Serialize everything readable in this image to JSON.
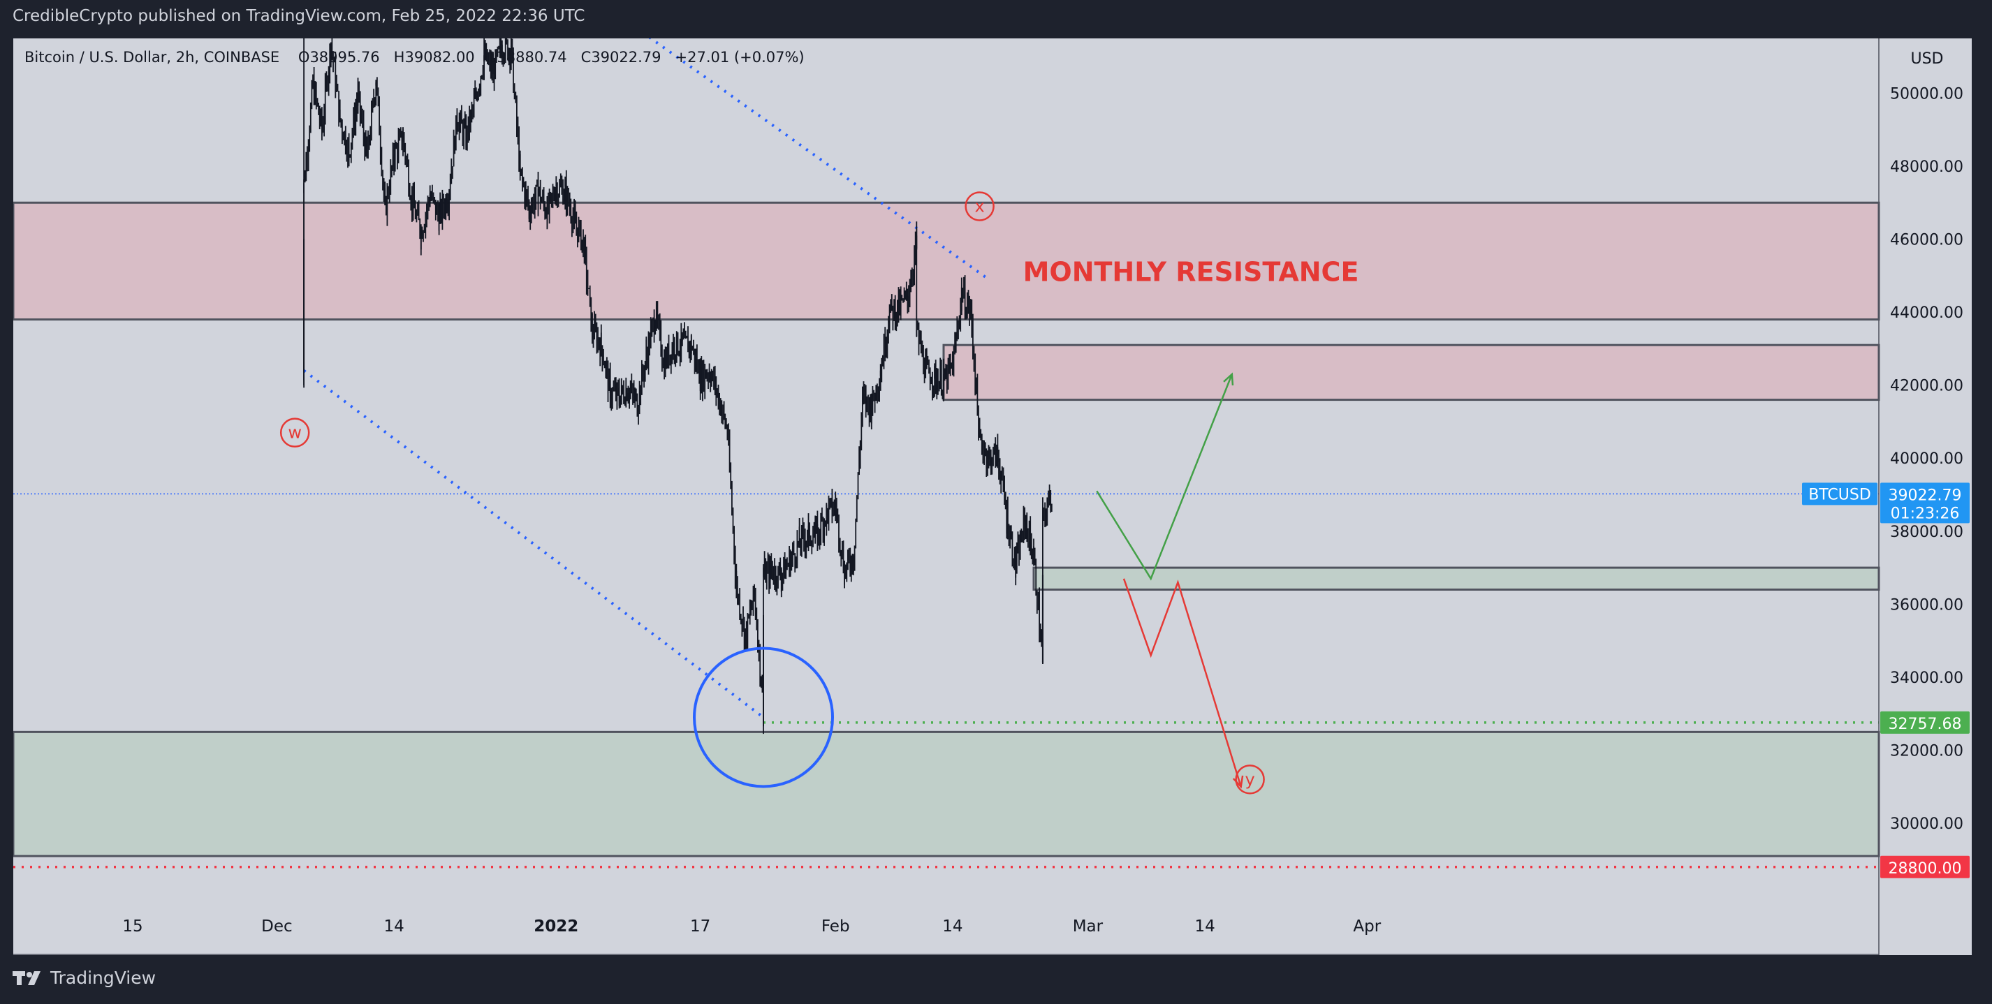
{
  "header": {
    "publish_line": "CredibleCrypto published on TradingView.com, Feb 25, 2022 22:36 UTC"
  },
  "legend": {
    "symbol": "Bitcoin / U.S. Dollar, 2h, COINBASE",
    "open_label": "O",
    "open": "38995.76",
    "high_label": "H",
    "high": "39082.00",
    "low_label": "L",
    "low": "38880.74",
    "close_label": "C",
    "close": "39022.79",
    "change": "+27.01 (+0.07%)"
  },
  "footer": {
    "brand": "TradingView",
    "logo_icon": "tradingview-logo-icon"
  },
  "colors": {
    "background": "#d1d4dc",
    "frame": "#1e222d",
    "candle": "#131722",
    "resistance_zone": "#d8bdc6",
    "support_zone": "#c0cfc9",
    "zone_border": "#50535e",
    "wave_label": "#e53935",
    "trendline": "#2962ff",
    "bullish_path": "#43a047",
    "bearish_path": "#e53935",
    "price_tag_blue": "#2196f3",
    "price_tag_green": "#4caf50",
    "price_tag_red": "#f23645"
  },
  "chart_data": {
    "type": "candlestick",
    "currency_label": "USD",
    "y_range": [
      27400,
      51500
    ],
    "y_ticks": [
      "50000.00",
      "48000.00",
      "46000.00",
      "44000.00",
      "42000.00",
      "40000.00",
      "38000.00",
      "36000.00",
      "34000.00",
      "32000.00",
      "30000.00"
    ],
    "x_ticks": [
      {
        "label": "15",
        "date": "2021-11-15"
      },
      {
        "label": "Dec",
        "date": "2021-12-01"
      },
      {
        "label": "14",
        "date": "2021-12-14"
      },
      {
        "label": "2022",
        "date": "2022-01-01",
        "bold": true
      },
      {
        "label": "17",
        "date": "2022-01-17"
      },
      {
        "label": "Feb",
        "date": "2022-02-01"
      },
      {
        "label": "14",
        "date": "2022-02-14"
      },
      {
        "label": "Mar",
        "date": "2022-03-01"
      },
      {
        "label": "14",
        "date": "2022-03-14"
      },
      {
        "label": "Apr",
        "date": "2022-04-01"
      }
    ],
    "price_path": [
      [
        "2021-12-04",
        52800
      ],
      [
        "2021-12-04",
        42500
      ],
      [
        "2021-12-04",
        47500
      ],
      [
        "2021-12-05",
        50200
      ],
      [
        "2021-12-06",
        49000
      ],
      [
        "2021-12-07",
        51400
      ],
      [
        "2021-12-08",
        49300
      ],
      [
        "2021-12-09",
        48400
      ],
      [
        "2021-12-10",
        49900
      ],
      [
        "2021-12-11",
        48200
      ],
      [
        "2021-12-12",
        50400
      ],
      [
        "2021-12-13",
        46800
      ],
      [
        "2021-12-14",
        48300
      ],
      [
        "2021-12-15",
        48800
      ],
      [
        "2021-12-16",
        47000
      ],
      [
        "2021-12-17",
        46200
      ],
      [
        "2021-12-18",
        47200
      ],
      [
        "2021-12-19",
        46600
      ],
      [
        "2021-12-20",
        47200
      ],
      [
        "2021-12-21",
        49300
      ],
      [
        "2021-12-22",
        48800
      ],
      [
        "2021-12-23",
        49800
      ],
      [
        "2021-12-24",
        51000
      ],
      [
        "2021-12-25",
        50600
      ],
      [
        "2021-12-26",
        51300
      ],
      [
        "2021-12-27",
        51200
      ],
      [
        "2021-12-28",
        47800
      ],
      [
        "2021-12-29",
        46800
      ],
      [
        "2021-12-30",
        47300
      ],
      [
        "2021-12-31",
        46700
      ],
      [
        "2022-01-01",
        47400
      ],
      [
        "2022-01-02",
        47300
      ],
      [
        "2022-01-03",
        46500
      ],
      [
        "2022-01-04",
        45900
      ],
      [
        "2022-01-05",
        43500
      ],
      [
        "2022-01-06",
        43100
      ],
      [
        "2022-01-07",
        41800
      ],
      [
        "2022-01-08",
        41700
      ],
      [
        "2022-01-09",
        41900
      ],
      [
        "2022-01-10",
        41500
      ],
      [
        "2022-01-11",
        42800
      ],
      [
        "2022-01-12",
        43900
      ],
      [
        "2022-01-13",
        42600
      ],
      [
        "2022-01-14",
        43100
      ],
      [
        "2022-01-15",
        43100
      ],
      [
        "2022-01-16",
        43100
      ],
      [
        "2022-01-17",
        42200
      ],
      [
        "2022-01-18",
        42400
      ],
      [
        "2022-01-19",
        41700
      ],
      [
        "2022-01-20",
        40700
      ],
      [
        "2022-01-21",
        36500
      ],
      [
        "2022-01-22",
        35100
      ],
      [
        "2022-01-23",
        36300
      ],
      [
        "2022-01-24",
        33100
      ],
      [
        "2022-01-24",
        36800
      ],
      [
        "2022-01-25",
        36900
      ],
      [
        "2022-01-26",
        36800
      ],
      [
        "2022-01-27",
        37200
      ],
      [
        "2022-01-28",
        37700
      ],
      [
        "2022-01-29",
        37900
      ],
      [
        "2022-01-30",
        37900
      ],
      [
        "2022-01-31",
        38500
      ],
      [
        "2022-02-01",
        38700
      ],
      [
        "2022-02-02",
        36900
      ],
      [
        "2022-02-03",
        37300
      ],
      [
        "2022-02-04",
        41600
      ],
      [
        "2022-02-05",
        41400
      ],
      [
        "2022-02-06",
        42400
      ],
      [
        "2022-02-07",
        44000
      ],
      [
        "2022-02-08",
        44100
      ],
      [
        "2022-02-09",
        44400
      ],
      [
        "2022-02-10",
        45900
      ],
      [
        "2022-02-10",
        43500
      ],
      [
        "2022-02-11",
        42400
      ],
      [
        "2022-02-12",
        42200
      ],
      [
        "2022-02-13",
        42100
      ],
      [
        "2022-02-14",
        42500
      ],
      [
        "2022-02-15",
        44500
      ],
      [
        "2022-02-16",
        44000
      ],
      [
        "2022-02-17",
        40500
      ],
      [
        "2022-02-18",
        40000
      ],
      [
        "2022-02-19",
        40100
      ],
      [
        "2022-02-20",
        38400
      ],
      [
        "2022-02-21",
        37000
      ],
      [
        "2022-02-22",
        38300
      ],
      [
        "2022-02-23",
        37300
      ],
      [
        "2022-02-24",
        34400
      ],
      [
        "2022-02-24",
        38300
      ],
      [
        "2022-02-25",
        39022.79
      ]
    ],
    "zones": [
      {
        "label": "MONTHLY RESISTANCE",
        "type": "resistance",
        "from_date": "2021-11-01",
        "from": 43800,
        "to": 47000
      },
      {
        "type": "resistance",
        "from_date": "2022-02-13",
        "from": 41600,
        "to": 43100
      },
      {
        "type": "support",
        "from_date": "2022-02-23",
        "from": 36400,
        "to": 37000
      },
      {
        "type": "support",
        "from_date": "2021-11-01",
        "from": 29100,
        "to": 32500
      }
    ],
    "horizontal_lines": [
      {
        "price": 39022.79,
        "style": "dotted",
        "color": "#2962ff",
        "tag": "BTCUSD"
      },
      {
        "price": 32757.68,
        "style": "dotted",
        "color": "#4caf50",
        "from_date": "2022-01-24"
      },
      {
        "price": 28800.0,
        "style": "dotted",
        "color": "#f23645"
      }
    ],
    "price_tags": [
      {
        "name": "BTCUSD",
        "value": "39022.79",
        "countdown": "01:23:26",
        "color": "#2196f3"
      },
      {
        "value": "32757.68",
        "color": "#4caf50"
      },
      {
        "value": "28800.00",
        "color": "#f23645"
      }
    ],
    "trendlines": [
      {
        "from": [
          "2022-01-03",
          53000
        ],
        "to": [
          "2022-02-18",
          44900
        ],
        "style": "dotted"
      },
      {
        "from": [
          "2021-12-04",
          42400
        ],
        "to": [
          "2022-01-24",
          32900
        ],
        "style": "dotted"
      }
    ],
    "wave_labels": [
      {
        "text": "w",
        "date": "2021-12-03",
        "price": 40700
      },
      {
        "text": "x",
        "date": "2022-02-17",
        "price": 46900
      },
      {
        "text": "y",
        "date": "2022-03-19",
        "price": 31200
      }
    ],
    "circle": {
      "date": "2022-01-24",
      "price": 32900
    },
    "bullish_path": [
      [
        "2022-03-02",
        39100
      ],
      [
        "2022-03-08",
        36700
      ],
      [
        "2022-03-17",
        42300
      ]
    ],
    "bearish_path": [
      [
        "2022-03-05",
        36700
      ],
      [
        "2022-03-08",
        34600
      ],
      [
        "2022-03-11",
        36600
      ],
      [
        "2022-03-18",
        31000
      ]
    ]
  }
}
